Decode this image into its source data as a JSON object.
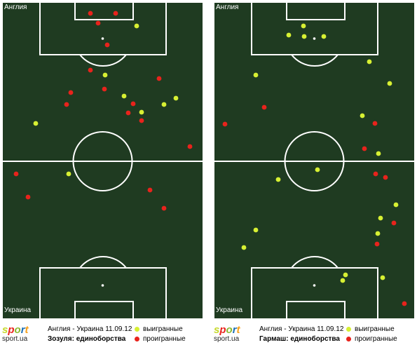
{
  "colors": {
    "won": "#d7f033",
    "lost": "#e8231c",
    "pitch": "#1f3b21",
    "lines": "#ffffff"
  },
  "logo": {
    "letters": [
      {
        "ch": "s",
        "color": "#c6d92b"
      },
      {
        "ch": "p",
        "color": "#e9231e"
      },
      {
        "ch": "o",
        "color": "#8ab82e"
      },
      {
        "ch": "r",
        "color": "#1c6fb6"
      },
      {
        "ch": "t",
        "color": "#f6a01b"
      }
    ],
    "domain": "sport.ua"
  },
  "legend": {
    "won": "выигранные",
    "lost": "проигранные"
  },
  "panels": [
    {
      "top_team": "Англия",
      "bottom_team": "Украина",
      "match": "Англия - Украина 11.09.12",
      "subtitle": "Зозуля: единоборства",
      "won": [
        [
          195,
          37
        ],
        [
          150,
          107
        ],
        [
          177,
          137
        ],
        [
          234,
          149
        ],
        [
          251,
          140
        ],
        [
          202,
          160
        ],
        [
          51,
          176
        ],
        [
          98,
          248
        ]
      ],
      "lost": [
        [
          129,
          19
        ],
        [
          165,
          19
        ],
        [
          140,
          33
        ],
        [
          153,
          64
        ],
        [
          129,
          100
        ],
        [
          227,
          112
        ],
        [
          149,
          127
        ],
        [
          101,
          132
        ],
        [
          190,
          148
        ],
        [
          95,
          149
        ],
        [
          183,
          161
        ],
        [
          202,
          172
        ],
        [
          271,
          209
        ],
        [
          23,
          248
        ],
        [
          214,
          271
        ],
        [
          40,
          281
        ],
        [
          234,
          297
        ]
      ]
    },
    {
      "top_team": "Англия",
      "bottom_team": "Украина",
      "match": "Англия - Украина 11.09.12",
      "subtitle": "Гармаш: единоборства",
      "won": [
        [
          131,
          37
        ],
        [
          110,
          50
        ],
        [
          132,
          52
        ],
        [
          160,
          52
        ],
        [
          225,
          88
        ],
        [
          63,
          107
        ],
        [
          254,
          119
        ],
        [
          215,
          165
        ],
        [
          238,
          219
        ],
        [
          151,
          242
        ],
        [
          95,
          256
        ],
        [
          263,
          292
        ],
        [
          241,
          311
        ],
        [
          63,
          328
        ],
        [
          237,
          333
        ],
        [
          46,
          353
        ],
        [
          191,
          392
        ],
        [
          187,
          400
        ],
        [
          244,
          396
        ]
      ],
      "lost": [
        [
          75,
          153
        ],
        [
          19,
          177
        ],
        [
          233,
          176
        ],
        [
          218,
          212
        ],
        [
          234,
          248
        ],
        [
          248,
          253
        ],
        [
          260,
          318
        ],
        [
          236,
          348
        ],
        [
          275,
          433
        ]
      ]
    }
  ]
}
